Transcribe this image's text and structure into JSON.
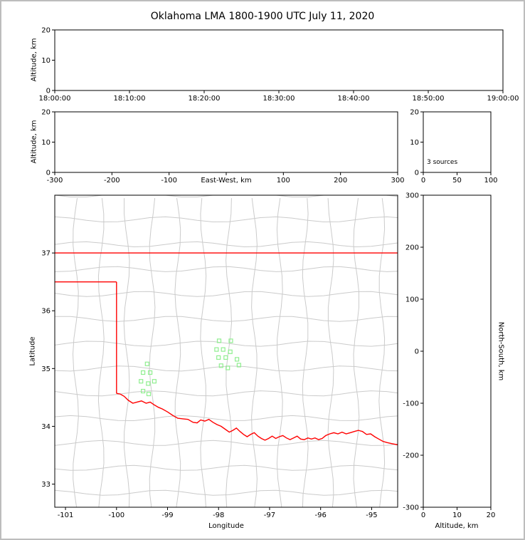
{
  "figure": {
    "title": "Oklahoma LMA 1800-1900 UTC July 11, 2020"
  },
  "colors": {
    "background": "#ffffff",
    "frame": "#bdbdbd",
    "axis": "#000000",
    "county_lines": "#cbcbcb",
    "state_border": "#ff0000",
    "station_marker": "#90ee90"
  },
  "chart_data": [
    {
      "id": "time_height_panel",
      "type": "scatter",
      "xlabel": "",
      "ylabel": "Altitude, km",
      "xtick_labels": [
        "18:00:00",
        "18:10:00",
        "18:20:00",
        "18:30:00",
        "18:40:00",
        "18:50:00",
        "19:00:00"
      ],
      "ylim": [
        0,
        20
      ],
      "yticks": [
        0,
        10,
        20
      ],
      "points": []
    },
    {
      "id": "ew_height_panel",
      "type": "scatter",
      "xlabel": "East-West, km",
      "ylabel": "Altitude, km",
      "xlim": [
        -300,
        300
      ],
      "xticks": [
        -300,
        -200,
        -100,
        0,
        100,
        200,
        300
      ],
      "xtick_labels": [
        "-300",
        "-200",
        "-100",
        "",
        "100",
        "200",
        "300"
      ],
      "ylim": [
        0,
        20
      ],
      "yticks": [
        0,
        10,
        20
      ],
      "points": []
    },
    {
      "id": "altitude_histogram_panel",
      "type": "line",
      "annotation": "3 sources",
      "xlim": [
        0,
        100
      ],
      "xticks": [
        0,
        50,
        100
      ],
      "ylim": [
        0,
        20
      ],
      "yticks": [
        0,
        10,
        20
      ],
      "points": []
    },
    {
      "id": "plan_view_map_panel",
      "type": "scatter",
      "xlabel": "Longitude",
      "ylabel": "Latitude",
      "xlim": [
        -101.21,
        -94.49
      ],
      "xticks": [
        -101,
        -100,
        -99,
        -98,
        -97,
        -96,
        -95
      ],
      "ylim": [
        32.6,
        38.0
      ],
      "yticks": [
        33,
        34,
        35,
        36,
        37
      ],
      "stations": [
        [
          -97.99,
          35.48
        ],
        [
          -97.76,
          35.48
        ],
        [
          -98.04,
          35.33
        ],
        [
          -97.91,
          35.33
        ],
        [
          -97.77,
          35.29
        ],
        [
          -98.0,
          35.19
        ],
        [
          -97.86,
          35.19
        ],
        [
          -97.64,
          35.16
        ],
        [
          -97.95,
          35.05
        ],
        [
          -97.82,
          35.01
        ],
        [
          -97.6,
          35.06
        ],
        [
          -99.4,
          35.08
        ],
        [
          -99.48,
          34.93
        ],
        [
          -99.34,
          34.93
        ],
        [
          -99.52,
          34.78
        ],
        [
          -99.38,
          34.74
        ],
        [
          -99.26,
          34.78
        ],
        [
          -99.48,
          34.61
        ],
        [
          -99.37,
          34.56
        ]
      ],
      "state_boundary": {
        "north_border_lat37": [
          [
            -101.21,
            37.0
          ],
          [
            -94.49,
            37.0
          ]
        ],
        "panhandle_south_lat36p5": [
          [
            -101.21,
            36.5
          ],
          [
            -100.0,
            36.5
          ]
        ],
        "west_border_lon100": [
          [
            -100.0,
            36.5
          ],
          [
            -100.0,
            34.57
          ]
        ],
        "red_river_south_border": [
          [
            -100.0,
            34.57
          ],
          [
            -99.93,
            34.56
          ],
          [
            -99.85,
            34.52
          ],
          [
            -99.77,
            34.45
          ],
          [
            -99.68,
            34.4
          ],
          [
            -99.6,
            34.42
          ],
          [
            -99.51,
            34.44
          ],
          [
            -99.42,
            34.4
          ],
          [
            -99.34,
            34.42
          ],
          [
            -99.26,
            34.37
          ],
          [
            -99.18,
            34.33
          ],
          [
            -99.1,
            34.3
          ],
          [
            -99.0,
            34.25
          ],
          [
            -98.9,
            34.19
          ],
          [
            -98.8,
            34.14
          ],
          [
            -98.7,
            34.13
          ],
          [
            -98.6,
            34.12
          ],
          [
            -98.5,
            34.07
          ],
          [
            -98.42,
            34.06
          ],
          [
            -98.35,
            34.11
          ],
          [
            -98.27,
            34.09
          ],
          [
            -98.19,
            34.12
          ],
          [
            -98.11,
            34.07
          ],
          [
            -98.03,
            34.03
          ],
          [
            -97.95,
            34.0
          ],
          [
            -97.87,
            33.95
          ],
          [
            -97.79,
            33.9
          ],
          [
            -97.72,
            33.93
          ],
          [
            -97.65,
            33.97
          ],
          [
            -97.58,
            33.91
          ],
          [
            -97.51,
            33.86
          ],
          [
            -97.44,
            33.82
          ],
          [
            -97.37,
            33.86
          ],
          [
            -97.3,
            33.89
          ],
          [
            -97.23,
            33.83
          ],
          [
            -97.16,
            33.79
          ],
          [
            -97.09,
            33.76
          ],
          [
            -97.02,
            33.79
          ],
          [
            -96.95,
            33.83
          ],
          [
            -96.88,
            33.79
          ],
          [
            -96.81,
            33.82
          ],
          [
            -96.74,
            33.84
          ],
          [
            -96.67,
            33.8
          ],
          [
            -96.6,
            33.77
          ],
          [
            -96.53,
            33.8
          ],
          [
            -96.46,
            33.83
          ],
          [
            -96.39,
            33.78
          ],
          [
            -96.32,
            33.77
          ],
          [
            -96.25,
            33.8
          ],
          [
            -96.18,
            33.78
          ],
          [
            -96.11,
            33.8
          ],
          [
            -96.04,
            33.77
          ],
          [
            -95.97,
            33.79
          ],
          [
            -95.9,
            33.84
          ],
          [
            -95.82,
            33.87
          ],
          [
            -95.74,
            33.89
          ],
          [
            -95.66,
            33.87
          ],
          [
            -95.58,
            33.9
          ],
          [
            -95.5,
            33.87
          ],
          [
            -95.42,
            33.89
          ],
          [
            -95.34,
            33.91
          ],
          [
            -95.26,
            33.93
          ],
          [
            -95.18,
            33.91
          ],
          [
            -95.1,
            33.86
          ],
          [
            -95.02,
            33.87
          ],
          [
            -94.94,
            33.82
          ],
          [
            -94.86,
            33.78
          ],
          [
            -94.78,
            33.74
          ],
          [
            -94.7,
            33.72
          ],
          [
            -94.6,
            33.7
          ],
          [
            -94.49,
            33.68
          ]
        ]
      },
      "county_grid": {
        "lon_step": 0.5,
        "lat_step": 0.43
      }
    },
    {
      "id": "north_south_panel",
      "type": "scatter",
      "xlabel": "Altitude, km",
      "ylabel_right": "North-South, km",
      "xlim": [
        0,
        20
      ],
      "xticks": [
        0,
        10,
        20
      ],
      "ylim": [
        -300,
        300
      ],
      "yticks": [
        300,
        200,
        100,
        0,
        -100,
        -200,
        -300
      ],
      "points": []
    }
  ]
}
